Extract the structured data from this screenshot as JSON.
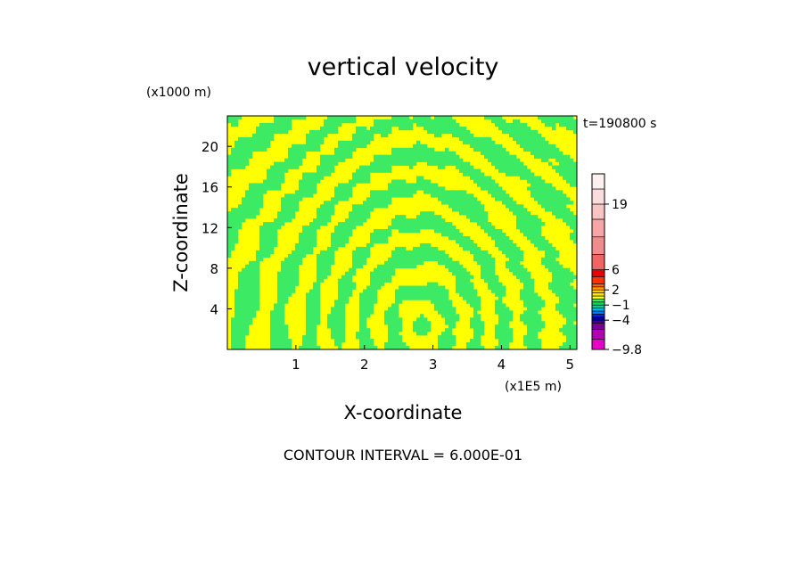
{
  "chart_data": {
    "type": "heatmap",
    "title": "vertical velocity",
    "xlabel": "X-coordinate",
    "ylabel": "Z-coordinate",
    "x_unit": "(x1E5 m)",
    "y_unit": "(x1000 m)",
    "time_label": "t=190800 s",
    "footer": "CONTOUR INTERVAL = 6.000E-01",
    "xlim": [
      0,
      5.1
    ],
    "ylim": [
      0,
      23
    ],
    "x_ticks": [
      1,
      2,
      3,
      4,
      5
    ],
    "x_tick_labels": [
      "1",
      "2",
      "3",
      "4",
      "5"
    ],
    "y_ticks": [
      4,
      8,
      12,
      16,
      20
    ],
    "y_tick_labels": [
      "4",
      "8",
      "12",
      "16",
      "20"
    ],
    "colorbar": {
      "range": [
        -9.8,
        25
      ],
      "tick_values": [
        19,
        6,
        2,
        -1,
        -4,
        -9.8
      ],
      "tick_labels": [
        "19",
        "6",
        "2",
        "−1",
        "−4",
        "−9.8"
      ],
      "levels": [
        {
          "from": -9.8,
          "to": -7.8,
          "color": "#e600c8"
        },
        {
          "from": -7.8,
          "to": -5.8,
          "color": "#b400b4"
        },
        {
          "from": -5.8,
          "to": -4.6,
          "color": "#780096"
        },
        {
          "from": -4.6,
          "to": -4.0,
          "color": "#46008c"
        },
        {
          "from": -4.0,
          "to": -3.4,
          "color": "#0000a0"
        },
        {
          "from": -3.4,
          "to": -2.8,
          "color": "#0028dc"
        },
        {
          "from": -2.8,
          "to": -2.2,
          "color": "#0078ff"
        },
        {
          "from": -2.2,
          "to": -1.6,
          "color": "#00b4f0"
        },
        {
          "from": -1.6,
          "to": -1.0,
          "color": "#00d28c"
        },
        {
          "from": -1.0,
          "to": -0.4,
          "color": "#00dc50"
        },
        {
          "from": -0.4,
          "to": 0.2,
          "color": "#3cea64"
        },
        {
          "from": 0.2,
          "to": 0.8,
          "color": "#ffff00"
        },
        {
          "from": 0.8,
          "to": 1.4,
          "color": "#ffe600"
        },
        {
          "from": 1.4,
          "to": 2.0,
          "color": "#ffc800"
        },
        {
          "from": 2.0,
          "to": 2.6,
          "color": "#ff9600"
        },
        {
          "from": 2.6,
          "to": 3.2,
          "color": "#ff6400"
        },
        {
          "from": 3.2,
          "to": 4.6,
          "color": "#ff3200"
        },
        {
          "from": 4.6,
          "to": 6.0,
          "color": "#e60000"
        },
        {
          "from": 6.0,
          "to": 9.0,
          "color": "#f06464"
        },
        {
          "from": 9.0,
          "to": 12.5,
          "color": "#f08c8c"
        },
        {
          "from": 12.5,
          "to": 16.0,
          "color": "#f5a5a5"
        },
        {
          "from": 16.0,
          "to": 19.0,
          "color": "#f8c3c3"
        },
        {
          "from": 19.0,
          "to": 22.0,
          "color": "#fadcdc"
        },
        {
          "from": 22.0,
          "to": 25.0,
          "color": "#fdf0f0"
        }
      ]
    },
    "field_colors": {
      "positive": "#ffff00",
      "negative": "#3cea64"
    },
    "field_description": "vertical velocity field dominated by two levels: positive (yellow) and slightly negative (green) alternating in curved, tilted wave bands"
  }
}
